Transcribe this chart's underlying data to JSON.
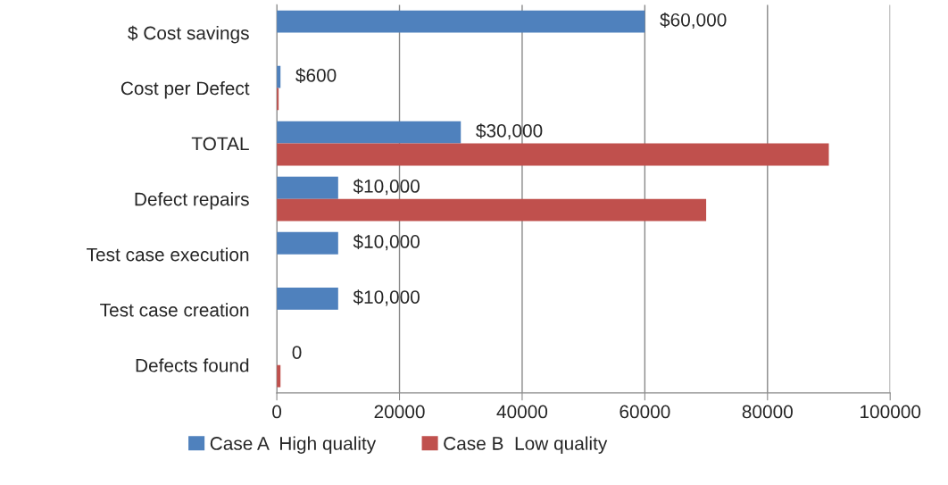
{
  "chart_data": {
    "type": "bar",
    "orientation": "horizontal",
    "categories": [
      "$ Cost savings",
      "Cost per Defect",
      "TOTAL",
      "Defect repairs",
      "Test case execution",
      "Test case creation",
      "Defects found"
    ],
    "series": [
      {
        "name": "Case A  High quality",
        "color": "#4f81bd",
        "values": [
          60000,
          600,
          30000,
          10000,
          10000,
          10000,
          0
        ],
        "value_labels": [
          "$60,000",
          "$600",
          "$30,000",
          "$10,000",
          "$10,000",
          "$10,000",
          "0"
        ]
      },
      {
        "name": "Case B  Low quality",
        "color": "#c0504d",
        "values": [
          null,
          300,
          90000,
          70000,
          null,
          null,
          600
        ]
      }
    ],
    "xlim": [
      0,
      100000
    ],
    "xticks": [
      0,
      20000,
      40000,
      60000,
      80000,
      100000
    ],
    "grid": "x",
    "legend": "bottom"
  }
}
